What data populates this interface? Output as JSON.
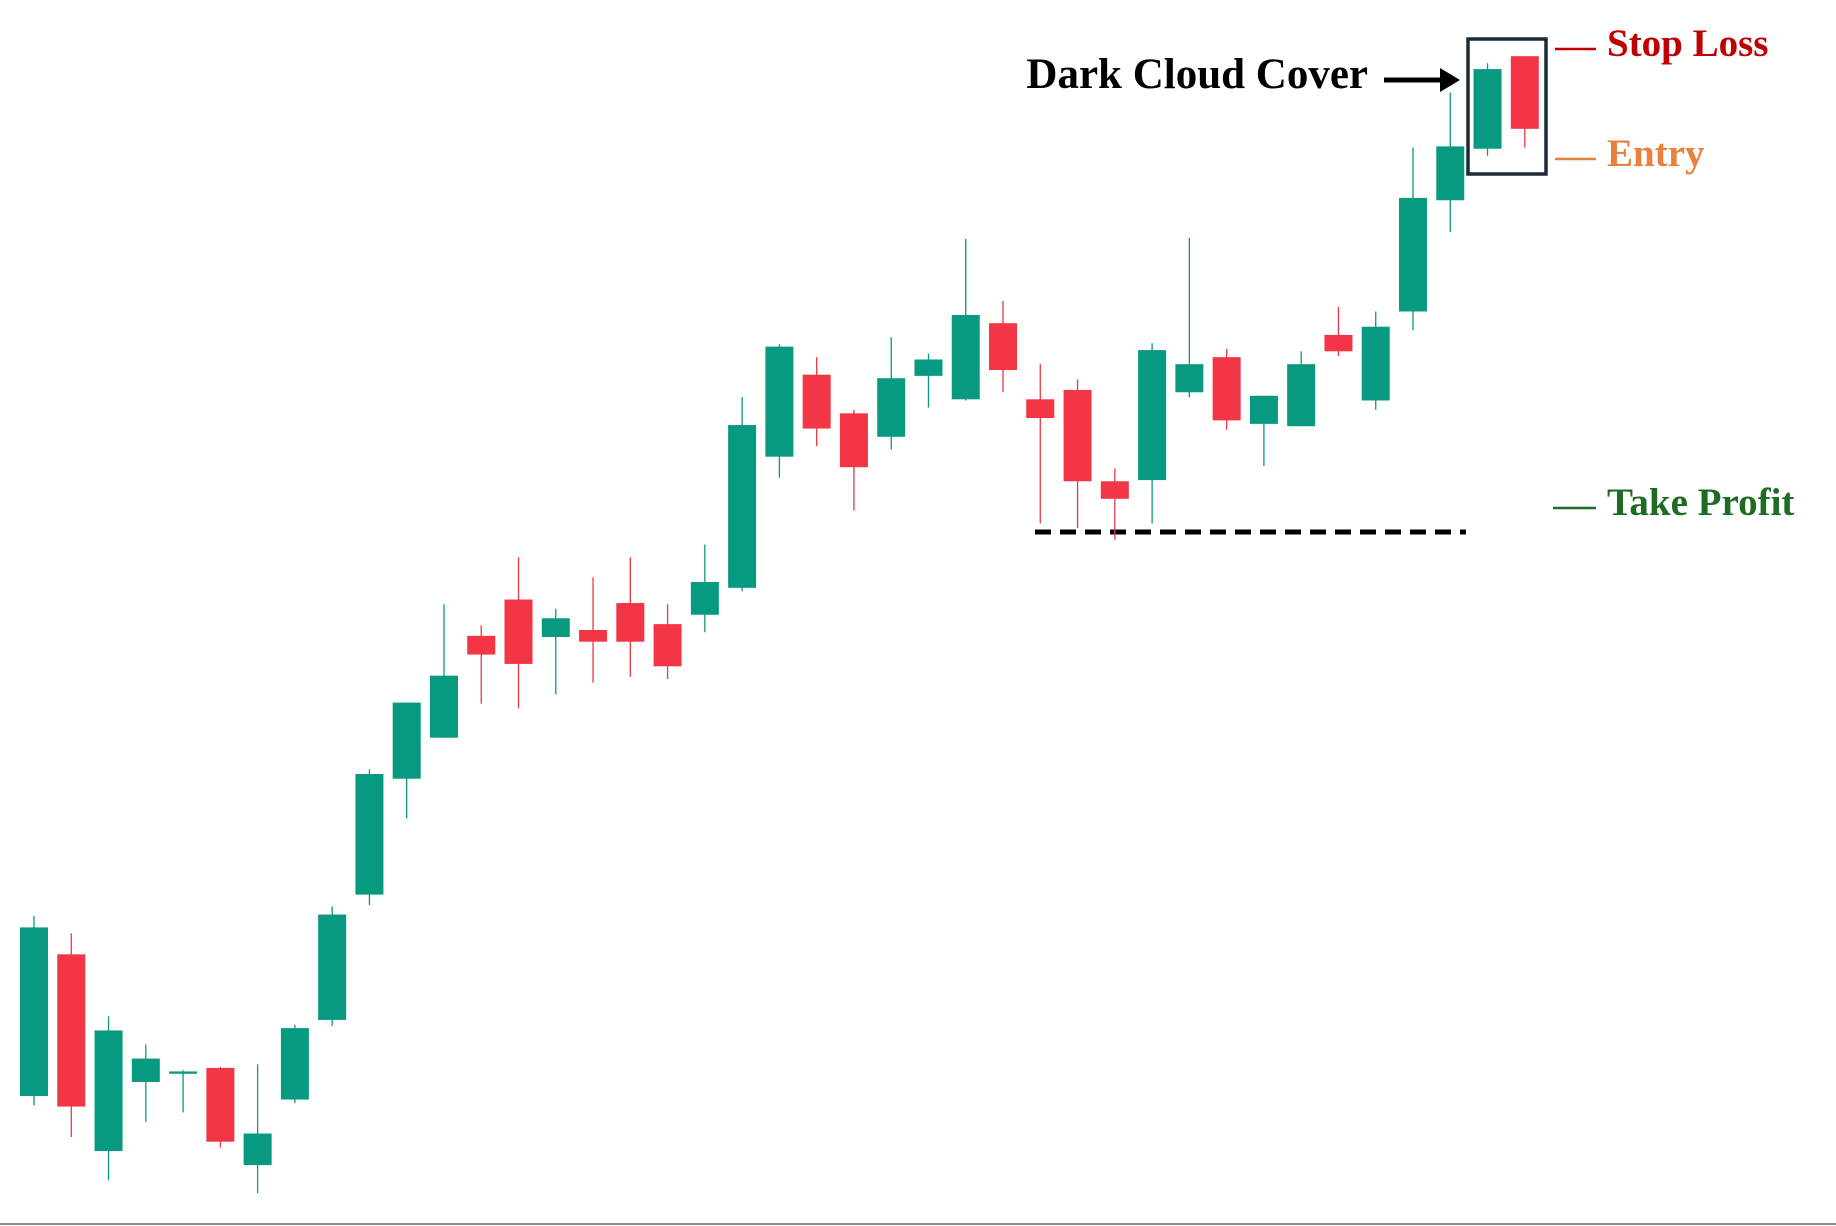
{
  "chart_data": {
    "type": "candlestick",
    "ylim": [
      0,
      1047
    ],
    "up_color": "#089981",
    "down_color": "#f23645",
    "open": [
      111,
      232,
      64,
      123,
      130,
      135,
      52,
      108,
      176,
      283,
      382,
      417,
      504,
      535,
      503,
      509,
      532,
      514,
      522,
      545,
      657,
      727,
      694,
      674,
      726,
      706,
      771,
      706,
      714,
      636,
      637,
      712,
      742,
      685,
      683,
      761,
      705,
      781,
      876,
      920,
      999
    ],
    "high": [
      265,
      250,
      179,
      155,
      133,
      136,
      138,
      172,
      273,
      390,
      447,
      531,
      513,
      571,
      527,
      554,
      571,
      531,
      582,
      708,
      753,
      742,
      697,
      759,
      745,
      843,
      790,
      736,
      723,
      647,
      754,
      844,
      749,
      709,
      747,
      785,
      781,
      921,
      968,
      993,
      999
    ],
    "low": [
      103,
      76,
      39,
      89,
      97,
      67,
      28,
      105,
      171,
      274,
      348,
      417,
      446,
      442,
      454,
      464,
      469,
      467,
      507,
      542,
      639,
      666,
      611,
      663,
      699,
      705,
      712,
      600,
      596,
      586,
      600,
      708,
      680,
      649,
      683,
      743,
      697,
      765,
      849,
      914,
      921
    ],
    "close": [
      255,
      102,
      167,
      143,
      132,
      72,
      79,
      169,
      266,
      386,
      447,
      470,
      488,
      480,
      519,
      499,
      499,
      478,
      550,
      684,
      751,
      681,
      648,
      724,
      740,
      778,
      731,
      690,
      636,
      621,
      748,
      736,
      688,
      709,
      736,
      747,
      768,
      878,
      922,
      988,
      937
    ],
    "annotations": {
      "pattern": "Dark Cloud Cover",
      "stop_loss": "Stop Loss",
      "entry": "Entry",
      "take_profit": "Take Profit"
    },
    "annotation_colors": {
      "pattern": "#000000",
      "stop_loss": "#c00000",
      "entry": "#e8803e",
      "take_profit": "#1e6b22"
    }
  }
}
